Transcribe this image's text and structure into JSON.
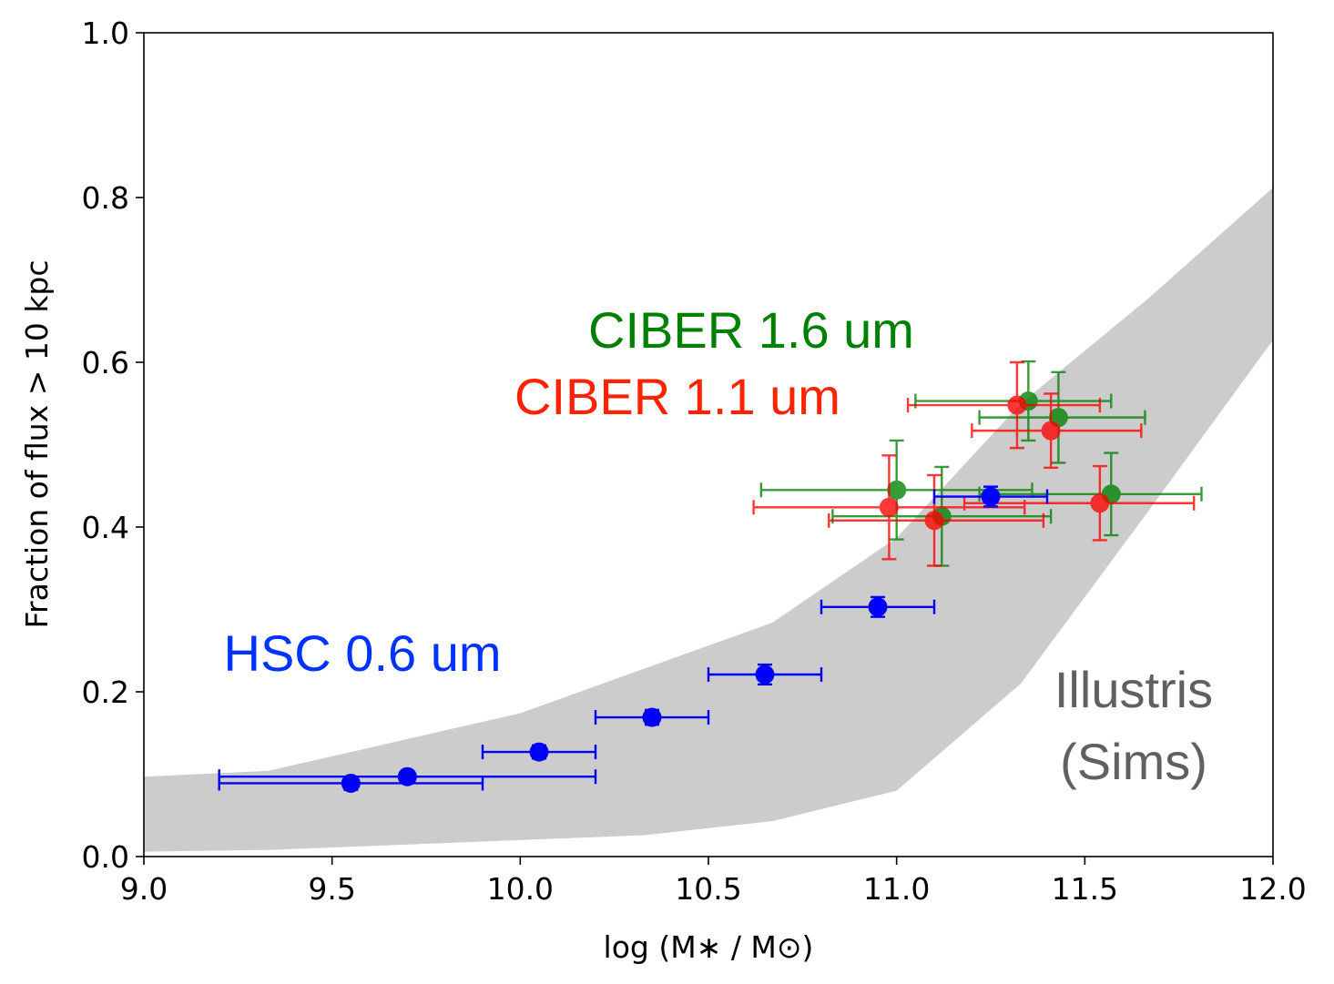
{
  "chart_data": {
    "type": "scatter",
    "title": "",
    "xlabel": "log (M∗ / M⊙)",
    "ylabel": "Fraction of flux > 10 kpc",
    "xlim": [
      9.0,
      12.0
    ],
    "ylim": [
      0.0,
      1.0
    ],
    "xticks": [
      "9.0",
      "9.5",
      "10.0",
      "10.5",
      "11.0",
      "11.5",
      "12.0"
    ],
    "yticks": [
      "0.0",
      "0.2",
      "0.4",
      "0.6",
      "0.8",
      "1.0"
    ],
    "grid": false,
    "band": {
      "label": "Illustris\n(Sims)",
      "color": "#cccccc",
      "upper": [
        [
          9.0,
          0.097
        ],
        [
          9.33,
          0.104
        ],
        [
          10.0,
          0.174
        ],
        [
          10.67,
          0.284
        ],
        [
          11.0,
          0.387
        ],
        [
          11.33,
          0.55
        ],
        [
          11.67,
          0.678
        ],
        [
          12.0,
          0.812
        ]
      ],
      "lower": [
        [
          9.0,
          0.006
        ],
        [
          9.33,
          0.008
        ],
        [
          10.0,
          0.02
        ],
        [
          10.33,
          0.026
        ],
        [
          10.67,
          0.043
        ],
        [
          11.0,
          0.08
        ],
        [
          11.33,
          0.21
        ],
        [
          11.67,
          0.42
        ],
        [
          12.0,
          0.627
        ]
      ]
    },
    "series": [
      {
        "name": "HSC 0.6 um",
        "color": "#0000ff",
        "points": [
          {
            "x": 9.55,
            "y": 0.089,
            "xerr": [
              0.35,
              0.35
            ],
            "yerr": 0.008
          },
          {
            "x": 9.7,
            "y": 0.097,
            "xerr": [
              0.5,
              0.5
            ],
            "yerr": 0.006
          },
          {
            "x": 10.05,
            "y": 0.127,
            "xerr": [
              0.15,
              0.15
            ],
            "yerr": 0.008
          },
          {
            "x": 10.35,
            "y": 0.169,
            "xerr": [
              0.15,
              0.15
            ],
            "yerr": 0.009
          },
          {
            "x": 10.65,
            "y": 0.221,
            "xerr": [
              0.15,
              0.15
            ],
            "yerr": 0.012
          },
          {
            "x": 10.95,
            "y": 0.303,
            "xerr": [
              0.15,
              0.15
            ],
            "yerr": 0.012
          },
          {
            "x": 11.25,
            "y": 0.437,
            "xerr": [
              0.15,
              0.15
            ],
            "yerr": 0.012
          }
        ]
      },
      {
        "name": "CIBER 1.6 um",
        "color": "#008000",
        "points": [
          {
            "x": 11.0,
            "y": 0.445,
            "xerr": [
              0.36,
              0.36
            ],
            "yerr": 0.06
          },
          {
            "x": 11.12,
            "y": 0.413,
            "xerr": [
              0.29,
              0.29
            ],
            "yerr": 0.06
          },
          {
            "x": 11.35,
            "y": 0.553,
            "xerr": [
              0.3,
              0.22
            ],
            "yerr": 0.048
          },
          {
            "x": 11.43,
            "y": 0.533,
            "xerr": [
              0.21,
              0.23
            ],
            "yerr": 0.055
          },
          {
            "x": 11.57,
            "y": 0.44,
            "xerr": [
              0.35,
              0.24
            ],
            "yerr": 0.05
          }
        ]
      },
      {
        "name": "CIBER 1.1 um",
        "color": "#ff0000",
        "points": [
          {
            "x": 10.98,
            "y": 0.424,
            "xerr": [
              0.36,
              0.36
            ],
            "yerr": 0.063
          },
          {
            "x": 11.1,
            "y": 0.408,
            "xerr": [
              0.28,
              0.29
            ],
            "yerr": 0.055
          },
          {
            "x": 11.32,
            "y": 0.548,
            "xerr": [
              0.29,
              0.22
            ],
            "yerr": 0.052
          },
          {
            "x": 11.41,
            "y": 0.517,
            "xerr": [
              0.21,
              0.24
            ],
            "yerr": 0.045
          },
          {
            "x": 11.54,
            "y": 0.429,
            "xerr": [
              0.36,
              0.25
            ],
            "yerr": 0.045
          }
        ]
      }
    ],
    "annotations": [
      {
        "text": "CIBER 1.6 um",
        "color": "#008000"
      },
      {
        "text": "CIBER 1.1 um",
        "color": "#ff2200"
      },
      {
        "text": "HSC 0.6 um",
        "color": "#0033ff"
      },
      {
        "text": "Illustris",
        "color": "#606060"
      },
      {
        "text": "(Sims)",
        "color": "#606060"
      }
    ]
  }
}
